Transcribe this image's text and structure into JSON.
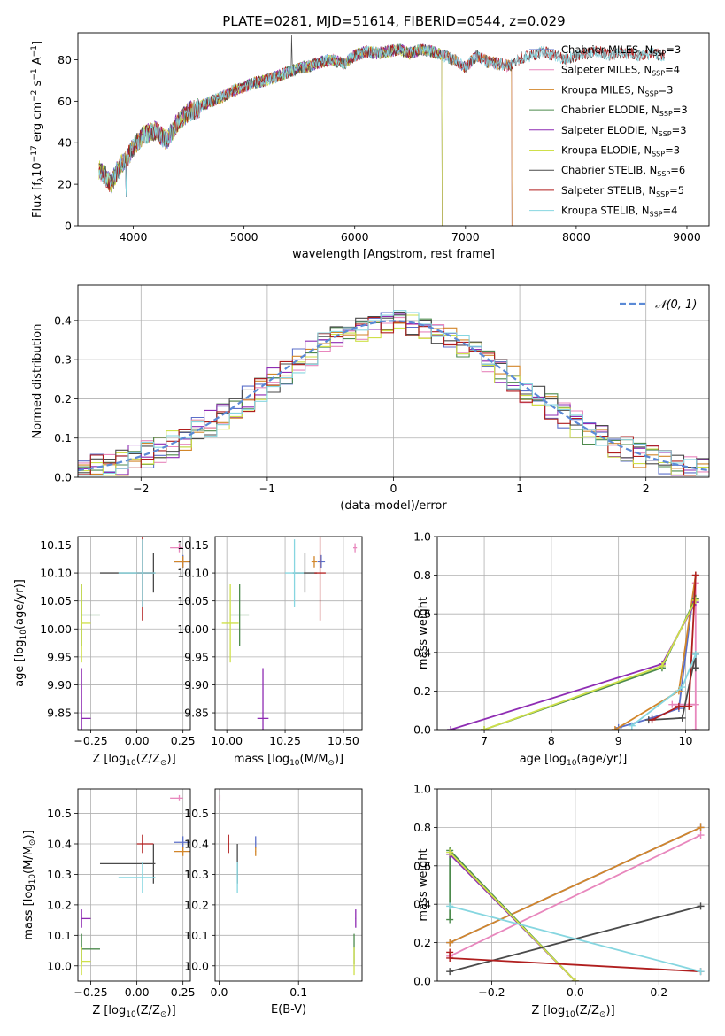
{
  "figure": {
    "title": "PLATE=0281, MJD=51614, FIBERID=0544, z=0.029"
  },
  "colors": {
    "Chabrier MILES": "#5b6fc9",
    "Salpeter MILES": "#e887bd",
    "Kroupa MILES": "#d2862a",
    "Chabrier ELODIE": "#4c8a4c",
    "Salpeter ELODIE": "#8e2cb3",
    "Kroupa ELODIE": "#cfe04a",
    "Chabrier STELIB": "#4a4a4a",
    "Salpeter STELIB": "#b01e1e",
    "Kroupa STELIB": "#86d6e0",
    "gaussian": "#5b8ad6"
  },
  "chart_data": [
    {
      "id": "spectrum",
      "type": "line",
      "xlabel": "wavelength [Angstrom, rest frame]",
      "ylabel_parts": [
        "Flux [f",
        "λ",
        "10",
        "−17",
        " erg cm",
        "−2",
        " s",
        "−1",
        " A",
        "−1",
        "]"
      ],
      "xlim": [
        3500,
        9200
      ],
      "ylim": [
        0,
        93
      ],
      "xticks": [
        4000,
        5000,
        6000,
        7000,
        8000,
        9000
      ],
      "yticks": [
        0,
        20,
        40,
        60,
        80
      ],
      "continuum": {
        "x": [
          3690,
          3750,
          3800,
          3850,
          3900,
          3950,
          4000,
          4100,
          4200,
          4300,
          4400,
          4500,
          4600,
          4700,
          4800,
          4900,
          5000,
          5100,
          5200,
          5300,
          5400,
          5500,
          5600,
          5700,
          5800,
          5900,
          6000,
          6100,
          6200,
          6300,
          6400,
          6500,
          6600,
          6700,
          6800,
          6900,
          7000,
          7100,
          7200,
          7300,
          7400,
          7500,
          7600,
          7700,
          7800,
          7900,
          8000,
          8100,
          8200,
          8300,
          8400,
          8500,
          8600,
          8700,
          8800
        ],
        "y": [
          27,
          24,
          20,
          26,
          30,
          33,
          38,
          44,
          46,
          41,
          50,
          55,
          57,
          60,
          62,
          65,
          67,
          69,
          70,
          72,
          74,
          76,
          77,
          79,
          80,
          78,
          82,
          84,
          83,
          84,
          85,
          83,
          85,
          84,
          82,
          80,
          76,
          82,
          79,
          78,
          77,
          81,
          82,
          84,
          82,
          80,
          82,
          83,
          84,
          82,
          83,
          83,
          82,
          83,
          82
        ]
      },
      "legend": [
        {
          "base": "Chabrier MILES",
          "n": 3
        },
        {
          "base": "Salpeter MILES",
          "n": 4
        },
        {
          "base": "Kroupa MILES",
          "n": 3
        },
        {
          "base": "Chabrier ELODIE",
          "n": 3
        },
        {
          "base": "Salpeter ELODIE",
          "n": 3
        },
        {
          "base": "Kroupa ELODIE",
          "n": 3
        },
        {
          "base": "Chabrier STELIB",
          "n": 6
        },
        {
          "base": "Salpeter STELIB",
          "n": 5
        },
        {
          "base": "Kroupa STELIB",
          "n": 4
        }
      ],
      "legend_sub": "SSP",
      "legend_position": "right"
    },
    {
      "id": "residuals",
      "type": "histogram",
      "xlabel": "(data-model)/error",
      "ylabel": "Normed distribution",
      "xlim": [
        -2.5,
        2.5
      ],
      "ylim": [
        0,
        0.49
      ],
      "xticks": [
        -2,
        -1,
        0,
        1,
        2
      ],
      "yticks": [
        0.0,
        0.1,
        0.2,
        0.3,
        0.4
      ],
      "bin_width": 0.1,
      "gaussian_legend": "𝒩(0, 1)",
      "legend_position": "upper right",
      "grid": true
    },
    {
      "id": "age-vs-Z",
      "type": "scatter",
      "xlabel_parts": [
        "Z [log",
        "10",
        "(Z/Z",
        "⊙",
        ")]"
      ],
      "ylabel_parts": [
        "age  [log",
        "10",
        "(age/yr)]"
      ],
      "xlim": [
        -0.32,
        0.29
      ],
      "ylim": [
        9.82,
        10.165
      ],
      "xticks": [
        -0.25,
        0.0,
        0.25
      ],
      "yticks": [
        9.85,
        9.9,
        9.95,
        10.0,
        10.05,
        10.1,
        10.15
      ],
      "grid": true
    },
    {
      "id": "age-vs-mass",
      "type": "scatter",
      "xlabel_parts": [
        "mass [log",
        "10",
        "(M/M",
        "⊙",
        ")]"
      ],
      "xlim": [
        9.95,
        10.58
      ],
      "ylim": [
        9.82,
        10.165
      ],
      "xticks": [
        10.0,
        10.25,
        10.5
      ],
      "yticks": [
        9.85,
        9.9,
        9.95,
        10.0,
        10.05,
        10.1,
        10.15
      ],
      "grid": true
    },
    {
      "id": "weight-vs-age",
      "type": "line",
      "xlabel_parts": [
        "age  [log",
        "10",
        "(age/yr)]"
      ],
      "ylabel": "mass weight",
      "xlim": [
        6.3,
        10.35
      ],
      "ylim": [
        0,
        1
      ],
      "xticks": [
        7,
        8,
        9,
        10
      ],
      "yticks": [
        0.0,
        0.2,
        0.4,
        0.6,
        0.8,
        1.0
      ],
      "grid": true,
      "series": [
        {
          "key": "Chabrier MILES",
          "x": [
            9.0,
            9.5,
            9.9,
            10.15
          ],
          "y": [
            0.01,
            0.06,
            0.11,
            0.8
          ]
        },
        {
          "key": "Salpeter MILES",
          "x": [
            9.8,
            10.15,
            10.15,
            10.15
          ],
          "y": [
            0.13,
            0.13,
            0.76,
            0.0
          ]
        },
        {
          "key": "Kroupa MILES",
          "x": [
            8.95,
            9.9,
            10.15
          ],
          "y": [
            0.0,
            0.2,
            0.8
          ]
        },
        {
          "key": "Chabrier ELODIE",
          "x": [
            7.0,
            9.65,
            10.15
          ],
          "y": [
            0.0,
            0.32,
            0.68
          ]
        },
        {
          "key": "Salpeter ELODIE",
          "x": [
            6.5,
            9.65,
            10.15
          ],
          "y": [
            0.0,
            0.34,
            0.66
          ]
        },
        {
          "key": "Kroupa ELODIE",
          "x": [
            7.0,
            9.65,
            10.15
          ],
          "y": [
            0.0,
            0.33,
            0.67
          ]
        },
        {
          "key": "Chabrier STELIB",
          "x": [
            9.45,
            9.95,
            10.15,
            10.15
          ],
          "y": [
            0.05,
            0.06,
            0.39,
            0.32
          ]
        },
        {
          "key": "Salpeter STELIB",
          "x": [
            9.5,
            9.9,
            10.05,
            10.15
          ],
          "y": [
            0.05,
            0.12,
            0.12,
            0.8
          ]
        },
        {
          "key": "Kroupa STELIB",
          "x": [
            9.2,
            9.95,
            10.15
          ],
          "y": [
            0.02,
            0.22,
            0.39
          ]
        }
      ]
    },
    {
      "id": "mass-vs-Z",
      "type": "scatter",
      "xlabel_parts": [
        "Z [log",
        "10",
        "(Z/Z",
        "⊙",
        ")]"
      ],
      "ylabel_parts": [
        "mass [log",
        "10",
        "(M/M",
        "⊙",
        ")]"
      ],
      "xlim": [
        -0.32,
        0.29
      ],
      "ylim": [
        9.95,
        10.58
      ],
      "xticks": [
        -0.25,
        0.0,
        0.25
      ],
      "yticks": [
        10.0,
        10.1,
        10.2,
        10.3,
        10.4,
        10.5
      ],
      "grid": true
    },
    {
      "id": "mass-vs-ebv",
      "type": "scatter",
      "xlabel": "E(B-V)",
      "xlim": [
        -0.005,
        0.18
      ],
      "ylim": [
        9.95,
        10.58
      ],
      "xticks": [
        0.0,
        0.1
      ],
      "yticks": [
        10.0,
        10.1,
        10.2,
        10.3,
        10.4,
        10.5
      ],
      "grid": true
    },
    {
      "id": "weight-vs-Z",
      "type": "line",
      "xlabel_parts": [
        "Z [log",
        "10",
        "(Z/Z",
        "⊙",
        ")]"
      ],
      "ylabel": "mass weight",
      "xlim": [
        -0.33,
        0.32
      ],
      "ylim": [
        0,
        1
      ],
      "xticks": [
        -0.2,
        0.0,
        0.2
      ],
      "yticks": [
        0.0,
        0.2,
        0.4,
        0.6,
        0.8,
        1.0
      ],
      "grid": true,
      "series": [
        {
          "key": "Chabrier MILES",
          "x": [
            -0.3,
            0.3
          ],
          "y": [
            0.2,
            0.8
          ]
        },
        {
          "key": "Salpeter MILES",
          "x": [
            -0.3,
            0.3
          ],
          "y": [
            0.13,
            0.76
          ]
        },
        {
          "key": "Kroupa MILES",
          "x": [
            -0.3,
            0.3
          ],
          "y": [
            0.2,
            0.8
          ]
        },
        {
          "key": "Chabrier ELODIE",
          "x": [
            -0.3,
            -0.3,
            0.0
          ],
          "y": [
            0.32,
            0.68,
            0.0
          ]
        },
        {
          "key": "Salpeter ELODIE",
          "x": [
            -0.3,
            0.0
          ],
          "y": [
            0.66,
            0.0
          ]
        },
        {
          "key": "Kroupa ELODIE",
          "x": [
            -0.3,
            0.0
          ],
          "y": [
            0.67,
            0.0
          ]
        },
        {
          "key": "Chabrier STELIB",
          "x": [
            -0.3,
            0.3
          ],
          "y": [
            0.05,
            0.39
          ]
        },
        {
          "key": "Salpeter STELIB",
          "x": [
            -0.3,
            -0.3,
            0.3
          ],
          "y": [
            0.15,
            0.12,
            0.05
          ]
        },
        {
          "key": "Kroupa STELIB",
          "x": [
            -0.3,
            0.3
          ],
          "y": [
            0.39,
            0.05
          ]
        }
      ]
    }
  ],
  "points": [
    {
      "key": "Chabrier MILES",
      "Z": 0.25,
      "Zlo": 0.2,
      "Zhi": 0.29,
      "age": 10.12,
      "ageerr": 0.012,
      "mass": 10.405,
      "masserr": 0.02,
      "ebv": 0.046,
      "ebverr": 0.03
    },
    {
      "key": "Salpeter MILES",
      "Z": 0.23,
      "Zlo": 0.18,
      "Zhi": 0.25,
      "age": 10.145,
      "ageerr": 0.008,
      "mass": 10.55,
      "masserr": 0.01,
      "ebv": 0.001,
      "ebverr": 0.012
    },
    {
      "key": "Kroupa MILES",
      "Z": 0.25,
      "Zlo": 0.2,
      "Zhi": 0.29,
      "age": 10.12,
      "ageerr": 0.01,
      "mass": 10.375,
      "masserr": 0.015,
      "ebv": 0.046,
      "ebverr": 0.02
    },
    {
      "key": "Chabrier ELODIE",
      "Z": -0.3,
      "Zlo": -0.3,
      "Zhi": -0.2,
      "age": 10.025,
      "ageerr": 0.055,
      "mass": 10.055,
      "masserr": 0.05,
      "ebv": 0.17,
      "ebverr": 0.04
    },
    {
      "key": "Salpeter ELODIE",
      "Z": -0.3,
      "Zlo": -0.3,
      "Zhi": -0.25,
      "age": 9.84,
      "ageerr": 0.09,
      "mass": 10.155,
      "masserr": 0.03,
      "ebv": 0.172,
      "ebverr": 0.025
    },
    {
      "key": "Kroupa ELODIE",
      "Z": -0.3,
      "Zlo": -0.3,
      "Zhi": -0.25,
      "age": 10.01,
      "ageerr": 0.07,
      "mass": 10.015,
      "masserr": 0.045,
      "ebv": 0.17,
      "ebverr": 0.03
    },
    {
      "key": "Chabrier STELIB",
      "Z": 0.09,
      "Zlo": -0.2,
      "Zhi": 0.1,
      "age": 10.1,
      "ageerr": 0.035,
      "mass": 10.335,
      "masserr": 0.065,
      "ebv": 0.023,
      "ebverr": 0.065
    },
    {
      "key": "Salpeter STELIB",
      "Z": 0.03,
      "Zlo": 0.0,
      "Zhi": 0.09,
      "age": 10.1,
      "ageerr": 0.085,
      "mass": 10.4,
      "masserr": 0.03,
      "ebv": 0.012,
      "ebverr": 0.065
    },
    {
      "key": "Kroupa STELIB",
      "Z": 0.03,
      "Zlo": -0.1,
      "Zhi": 0.1,
      "age": 10.1,
      "ageerr": 0.06,
      "mass": 10.29,
      "masserr": 0.05,
      "ebv": 0.023,
      "ebverr": 0.05
    }
  ]
}
